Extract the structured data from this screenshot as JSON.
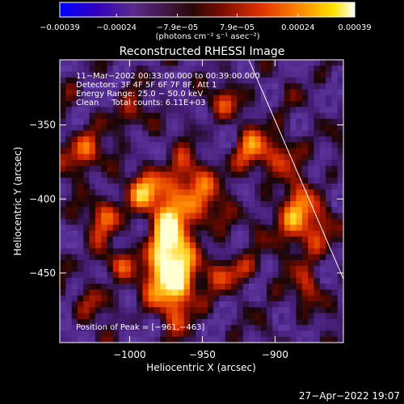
{
  "chart_data": {
    "type": "heatmap",
    "title": "Reconstructed RHESSI Image",
    "xlabel": "Heliocentric X (arcsec)",
    "ylabel": "Heliocentric Y (arcsec)",
    "xlim": [
      -1048,
      -853
    ],
    "ylim": [
      -497,
      -306
    ],
    "x_ticks": [
      -1000,
      -950,
      -900
    ],
    "x_tick_labels": [
      "−1000",
      "−950",
      "−900"
    ],
    "y_ticks": [
      -350,
      -400,
      -450
    ],
    "y_tick_labels": [
      "−350",
      "−400",
      "−450"
    ],
    "colorbar": {
      "range": [
        -0.00039,
        0.00039
      ],
      "tick_values": [
        -0.00039,
        -0.00024,
        -7.9e-05,
        7.9e-05,
        0.00024,
        0.00039
      ],
      "tick_labels": [
        "−0.00039",
        "−0.00024",
        "−7.9e−05",
        "7.9e−05",
        "0.00024",
        "0.00039"
      ],
      "units_label": "(photons cm⁻² s⁻¹ asec⁻²)",
      "colors": [
        "#0000ff",
        "#4000a8",
        "#5a2a8a",
        "#2a0a0a",
        "#8a1000",
        "#e03000",
        "#ff8000",
        "#ffe000",
        "#ffffff"
      ]
    },
    "annotations": [
      "11−Mar−2002 00:33:00.000 to 00:39:00.000",
      "Detectors: 3F 4F 5F 6F 7F 8F, Att 1",
      "Energy Range: 25.0 − 50.0 keV",
      "Clean     Total counts: 6.11E+03"
    ],
    "peak_label": "Position of Peak = [−961,−463]",
    "peak": [
      -961,
      -463
    ],
    "limb_line": [
      [
        -918,
        -306
      ],
      [
        -853,
        -454
      ]
    ],
    "grid": false
  },
  "footer": {
    "date": "27−Apr−2022 19:07"
  },
  "colors": {
    "background": "#000000",
    "text": "#ffffff"
  }
}
